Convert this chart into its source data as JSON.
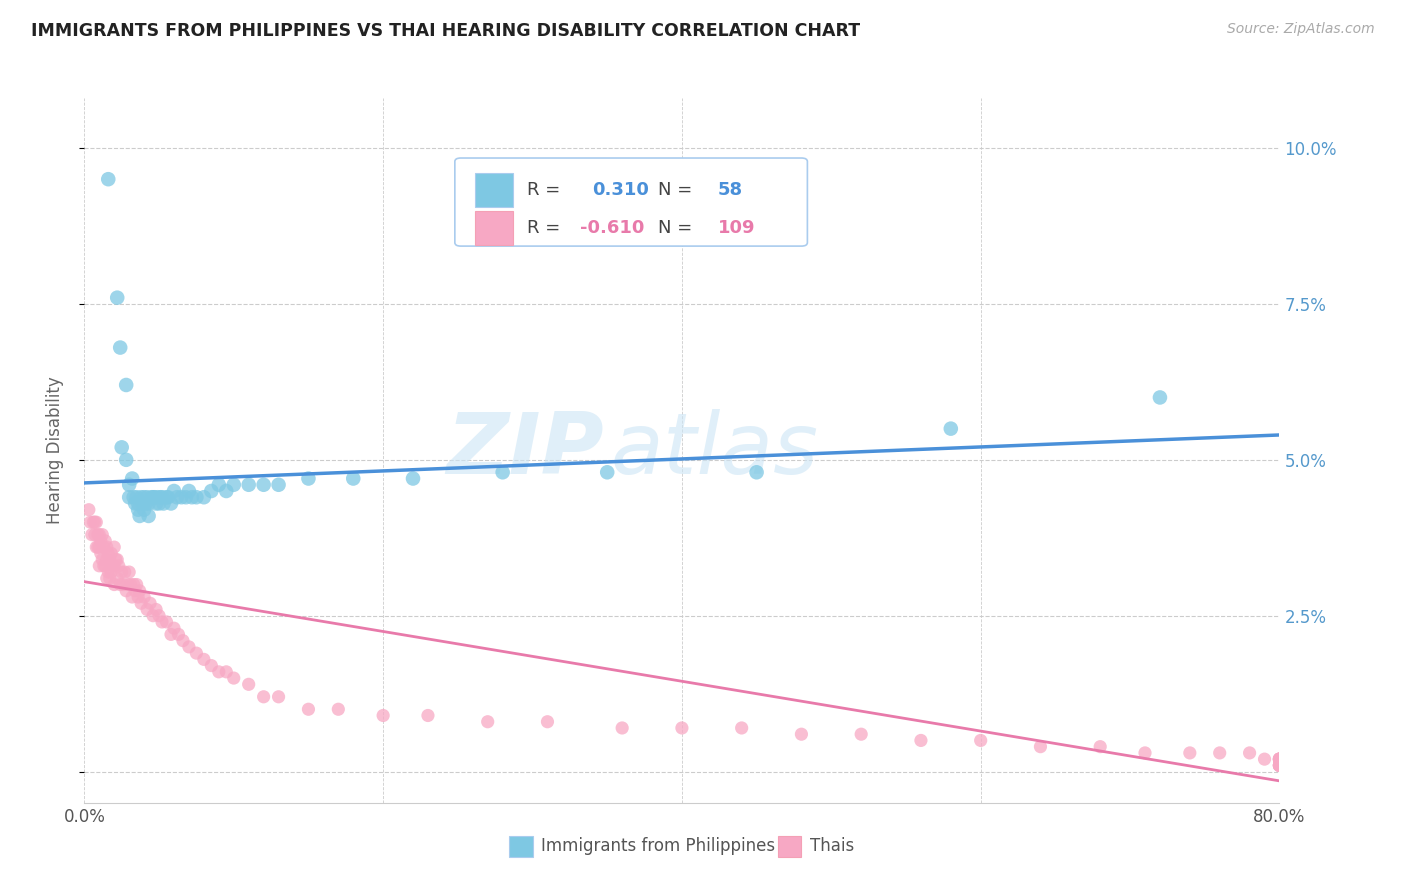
{
  "title": "IMMIGRANTS FROM PHILIPPINES VS THAI HEARING DISABILITY CORRELATION CHART",
  "source": "Source: ZipAtlas.com",
  "ylabel": "Hearing Disability",
  "xlim": [
    0.0,
    0.8
  ],
  "ylim": [
    -0.005,
    0.108
  ],
  "color_blue": "#7ec8e3",
  "color_pink": "#f7a8c4",
  "color_blue_line": "#4a90d9",
  "color_pink_line": "#e87aaa",
  "color_right_ticks": "#5599cc",
  "color_grid": "#cccccc",
  "watermark_zip": "ZIP",
  "watermark_atlas": "atlas",
  "philippines_x": [
    0.016,
    0.022,
    0.024,
    0.025,
    0.028,
    0.028,
    0.03,
    0.03,
    0.032,
    0.033,
    0.034,
    0.035,
    0.036,
    0.036,
    0.037,
    0.038,
    0.039,
    0.04,
    0.04,
    0.041,
    0.042,
    0.043,
    0.043,
    0.045,
    0.046,
    0.047,
    0.048,
    0.049,
    0.05,
    0.051,
    0.052,
    0.053,
    0.055,
    0.056,
    0.058,
    0.06,
    0.062,
    0.065,
    0.068,
    0.07,
    0.072,
    0.075,
    0.08,
    0.085,
    0.09,
    0.095,
    0.1,
    0.11,
    0.12,
    0.13,
    0.15,
    0.18,
    0.22,
    0.28,
    0.35,
    0.45,
    0.58,
    0.72
  ],
  "philippines_y": [
    0.095,
    0.076,
    0.068,
    0.052,
    0.062,
    0.05,
    0.046,
    0.044,
    0.047,
    0.044,
    0.043,
    0.044,
    0.043,
    0.042,
    0.041,
    0.044,
    0.043,
    0.044,
    0.042,
    0.043,
    0.044,
    0.043,
    0.041,
    0.044,
    0.044,
    0.044,
    0.043,
    0.044,
    0.043,
    0.044,
    0.044,
    0.043,
    0.044,
    0.044,
    0.043,
    0.045,
    0.044,
    0.044,
    0.044,
    0.045,
    0.044,
    0.044,
    0.044,
    0.045,
    0.046,
    0.045,
    0.046,
    0.046,
    0.046,
    0.046,
    0.047,
    0.047,
    0.047,
    0.048,
    0.048,
    0.048,
    0.055,
    0.06
  ],
  "thais_x": [
    0.003,
    0.004,
    0.005,
    0.006,
    0.007,
    0.007,
    0.008,
    0.008,
    0.009,
    0.009,
    0.01,
    0.01,
    0.01,
    0.011,
    0.011,
    0.012,
    0.012,
    0.013,
    0.013,
    0.014,
    0.014,
    0.015,
    0.015,
    0.015,
    0.016,
    0.016,
    0.017,
    0.017,
    0.018,
    0.018,
    0.019,
    0.02,
    0.02,
    0.02,
    0.021,
    0.022,
    0.022,
    0.023,
    0.024,
    0.025,
    0.026,
    0.027,
    0.028,
    0.029,
    0.03,
    0.031,
    0.032,
    0.033,
    0.034,
    0.035,
    0.036,
    0.037,
    0.038,
    0.04,
    0.042,
    0.044,
    0.046,
    0.048,
    0.05,
    0.052,
    0.055,
    0.058,
    0.06,
    0.063,
    0.066,
    0.07,
    0.075,
    0.08,
    0.085,
    0.09,
    0.095,
    0.1,
    0.11,
    0.12,
    0.13,
    0.15,
    0.17,
    0.2,
    0.23,
    0.27,
    0.31,
    0.36,
    0.4,
    0.44,
    0.48,
    0.52,
    0.56,
    0.6,
    0.64,
    0.68,
    0.71,
    0.74,
    0.76,
    0.78,
    0.79,
    0.8,
    0.8,
    0.8,
    0.8,
    0.8,
    0.8,
    0.8,
    0.8,
    0.8,
    0.8,
    0.8,
    0.8,
    0.8,
    0.8
  ],
  "thais_y": [
    0.042,
    0.04,
    0.038,
    0.04,
    0.04,
    0.038,
    0.04,
    0.036,
    0.038,
    0.036,
    0.038,
    0.036,
    0.033,
    0.037,
    0.035,
    0.038,
    0.034,
    0.036,
    0.033,
    0.037,
    0.033,
    0.036,
    0.034,
    0.031,
    0.035,
    0.032,
    0.034,
    0.031,
    0.035,
    0.032,
    0.033,
    0.036,
    0.033,
    0.03,
    0.034,
    0.034,
    0.031,
    0.033,
    0.03,
    0.032,
    0.03,
    0.032,
    0.029,
    0.03,
    0.032,
    0.03,
    0.028,
    0.03,
    0.029,
    0.03,
    0.028,
    0.029,
    0.027,
    0.028,
    0.026,
    0.027,
    0.025,
    0.026,
    0.025,
    0.024,
    0.024,
    0.022,
    0.023,
    0.022,
    0.021,
    0.02,
    0.019,
    0.018,
    0.017,
    0.016,
    0.016,
    0.015,
    0.014,
    0.012,
    0.012,
    0.01,
    0.01,
    0.009,
    0.009,
    0.008,
    0.008,
    0.007,
    0.007,
    0.007,
    0.006,
    0.006,
    0.005,
    0.005,
    0.004,
    0.004,
    0.003,
    0.003,
    0.003,
    0.003,
    0.002,
    0.002,
    0.002,
    0.002,
    0.002,
    0.002,
    0.002,
    0.002,
    0.001,
    0.001,
    0.001,
    0.001,
    0.001,
    0.001,
    0.001
  ]
}
